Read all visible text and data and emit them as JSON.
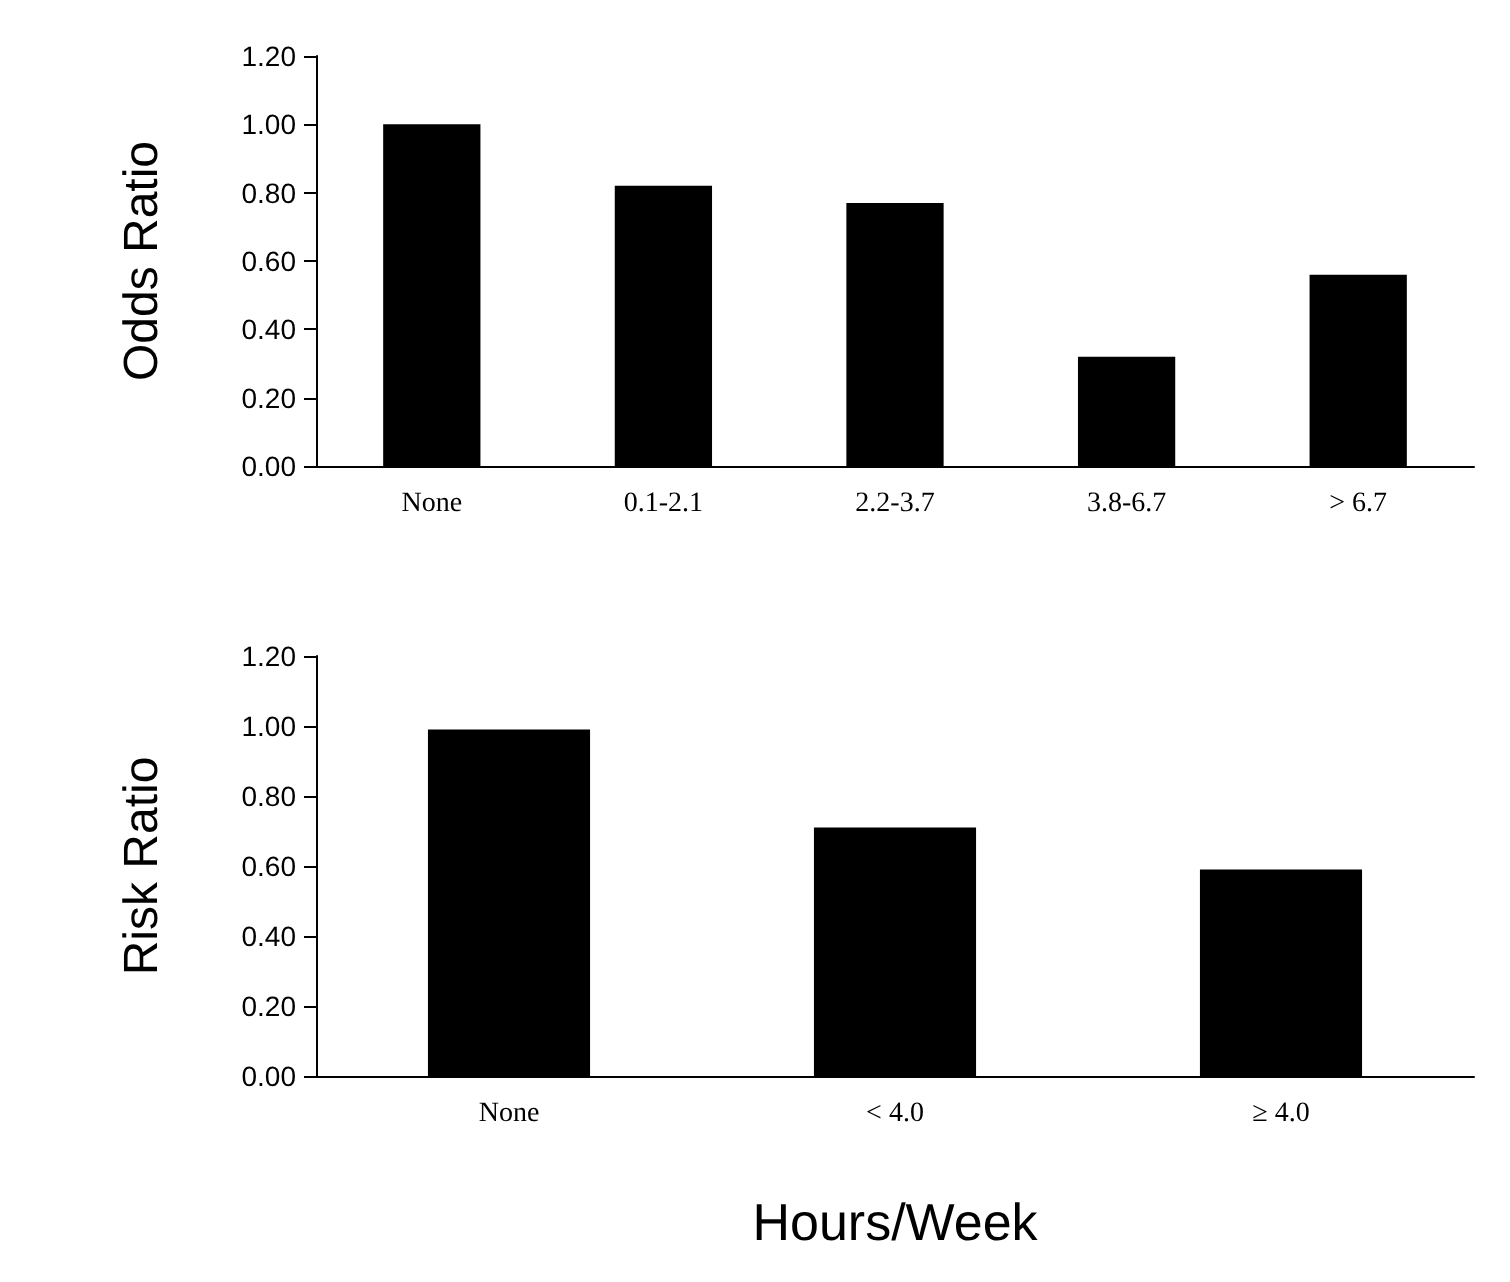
{
  "chart_data": [
    {
      "type": "bar",
      "ylabel": "Odds Ratio",
      "categories": [
        "None",
        "0.1-2.1",
        "2.2-3.7",
        "3.8-6.7",
        "> 6.7"
      ],
      "values": [
        1.0,
        0.82,
        0.77,
        0.32,
        0.56
      ],
      "color": "#000000",
      "ylim": [
        0,
        1.2
      ],
      "yticks": [
        {
          "value": 0,
          "label": "0.00"
        },
        {
          "value": 0.2,
          "label": "0.20"
        },
        {
          "value": 0.4,
          "label": "0.40"
        },
        {
          "value": 0.6,
          "label": "0.60"
        },
        {
          "value": 0.8,
          "label": "0.80"
        },
        {
          "value": 1,
          "label": "1.00"
        },
        {
          "value": 1.2,
          "label": "1.20"
        }
      ]
    },
    {
      "type": "bar",
      "ylabel": "Risk Ratio",
      "xlabel": "Hours/Week",
      "categories": [
        "None",
        "< 4.0",
        "≥ 4.0"
      ],
      "values": [
        0.99,
        0.71,
        0.59
      ],
      "color": "#000000",
      "ylim": [
        0,
        1.2
      ],
      "yticks": [
        {
          "value": 0,
          "label": "0.00"
        },
        {
          "value": 0.2,
          "label": "0.20"
        },
        {
          "value": 0.4,
          "label": "0.40"
        },
        {
          "value": 0.6,
          "label": "0.60"
        },
        {
          "value": 0.8,
          "label": "0.80"
        },
        {
          "value": 1,
          "label": "1.00"
        },
        {
          "value": 1.2,
          "label": "1.20"
        }
      ]
    }
  ]
}
